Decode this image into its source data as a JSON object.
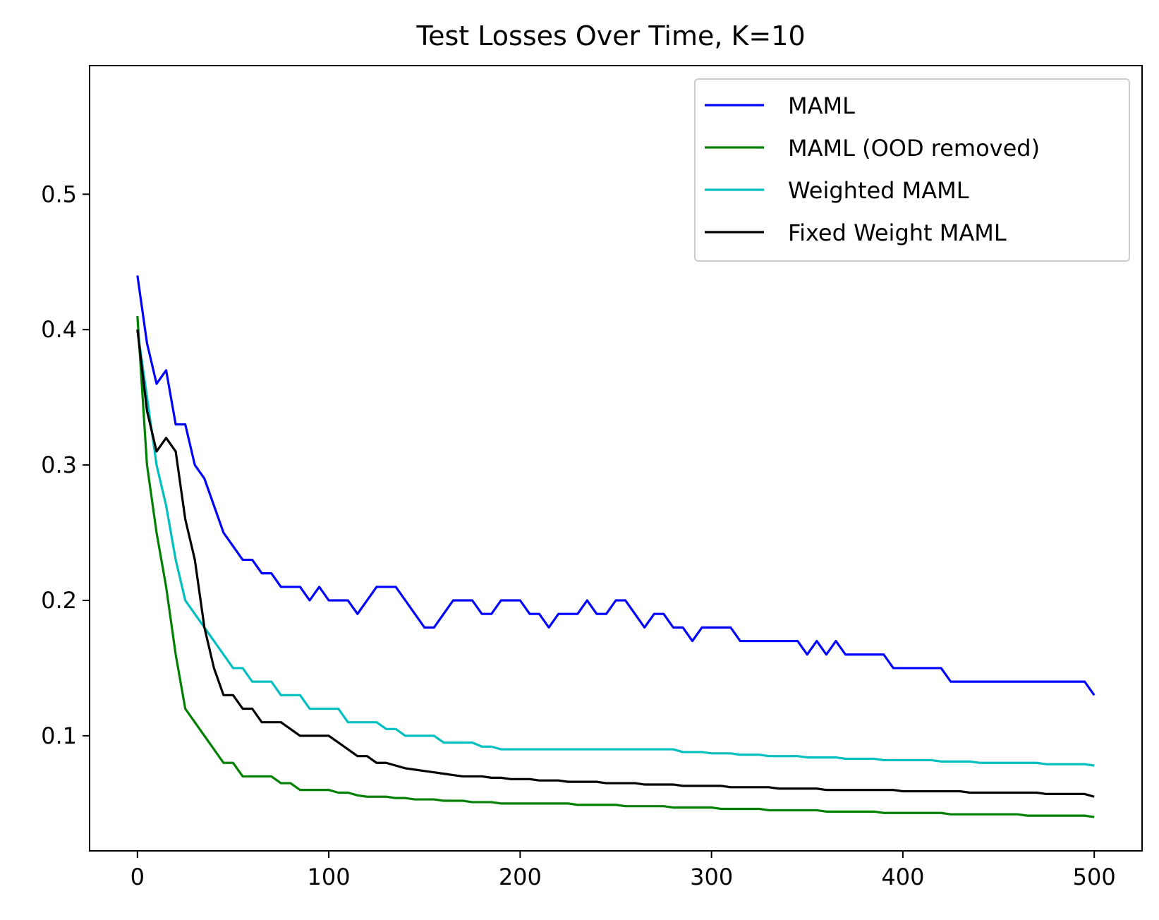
{
  "chart_data": {
    "type": "line",
    "title": "Test Losses Over Time, K=10",
    "xlabel": "",
    "ylabel": "",
    "xlim": [
      -25,
      525
    ],
    "ylim": [
      0.015,
      0.595
    ],
    "xticks": [
      0,
      100,
      200,
      300,
      400,
      500
    ],
    "xtick_labels": [
      "0",
      "100",
      "200",
      "300",
      "400",
      "500"
    ],
    "yticks": [
      0.1,
      0.2,
      0.3,
      0.4,
      0.5
    ],
    "ytick_labels": [
      "0.1",
      "0.2",
      "0.3",
      "0.4",
      "0.5"
    ],
    "grid": false,
    "legend_position": "top-right",
    "x_step": 5,
    "series": [
      {
        "name": "MAML",
        "color": "#0000ff",
        "values": [
          0.44,
          0.39,
          0.36,
          0.37,
          0.33,
          0.33,
          0.3,
          0.29,
          0.27,
          0.25,
          0.24,
          0.23,
          0.23,
          0.22,
          0.22,
          0.21,
          0.21,
          0.21,
          0.2,
          0.21,
          0.2,
          0.2,
          0.2,
          0.19,
          0.2,
          0.21,
          0.21,
          0.21,
          0.2,
          0.19,
          0.18,
          0.18,
          0.19,
          0.2,
          0.2,
          0.2,
          0.19,
          0.19,
          0.2,
          0.2,
          0.2,
          0.19,
          0.19,
          0.18,
          0.19,
          0.19,
          0.19,
          0.2,
          0.19,
          0.19,
          0.2,
          0.2,
          0.19,
          0.18,
          0.19,
          0.19,
          0.18,
          0.18,
          0.17,
          0.18,
          0.18,
          0.18,
          0.18,
          0.17,
          0.17,
          0.17,
          0.17,
          0.17,
          0.17,
          0.17,
          0.16,
          0.17,
          0.16,
          0.17,
          0.16,
          0.16,
          0.16,
          0.16,
          0.16,
          0.15,
          0.15,
          0.15,
          0.15,
          0.15,
          0.15,
          0.14,
          0.14,
          0.14,
          0.14,
          0.14,
          0.14,
          0.14,
          0.14,
          0.14,
          0.14,
          0.14,
          0.14,
          0.14,
          0.14,
          0.14,
          0.13
        ]
      },
      {
        "name": "MAML (OOD removed)",
        "color": "#008000",
        "values": [
          0.41,
          0.3,
          0.25,
          0.21,
          0.16,
          0.12,
          0.11,
          0.1,
          0.09,
          0.08,
          0.08,
          0.07,
          0.07,
          0.07,
          0.07,
          0.065,
          0.065,
          0.06,
          0.06,
          0.06,
          0.06,
          0.058,
          0.058,
          0.056,
          0.055,
          0.055,
          0.055,
          0.054,
          0.054,
          0.053,
          0.053,
          0.053,
          0.052,
          0.052,
          0.052,
          0.051,
          0.051,
          0.051,
          0.05,
          0.05,
          0.05,
          0.05,
          0.05,
          0.05,
          0.05,
          0.05,
          0.049,
          0.049,
          0.049,
          0.049,
          0.049,
          0.048,
          0.048,
          0.048,
          0.048,
          0.048,
          0.047,
          0.047,
          0.047,
          0.047,
          0.047,
          0.046,
          0.046,
          0.046,
          0.046,
          0.046,
          0.045,
          0.045,
          0.045,
          0.045,
          0.045,
          0.045,
          0.044,
          0.044,
          0.044,
          0.044,
          0.044,
          0.044,
          0.043,
          0.043,
          0.043,
          0.043,
          0.043,
          0.043,
          0.043,
          0.042,
          0.042,
          0.042,
          0.042,
          0.042,
          0.042,
          0.042,
          0.042,
          0.041,
          0.041,
          0.041,
          0.041,
          0.041,
          0.041,
          0.041,
          0.04
        ]
      },
      {
        "name": "Weighted MAML",
        "color": "#00bfbf",
        "values": [
          0.4,
          0.35,
          0.3,
          0.27,
          0.23,
          0.2,
          0.19,
          0.18,
          0.17,
          0.16,
          0.15,
          0.15,
          0.14,
          0.14,
          0.14,
          0.13,
          0.13,
          0.13,
          0.12,
          0.12,
          0.12,
          0.12,
          0.11,
          0.11,
          0.11,
          0.11,
          0.105,
          0.105,
          0.1,
          0.1,
          0.1,
          0.1,
          0.095,
          0.095,
          0.095,
          0.095,
          0.092,
          0.092,
          0.09,
          0.09,
          0.09,
          0.09,
          0.09,
          0.09,
          0.09,
          0.09,
          0.09,
          0.09,
          0.09,
          0.09,
          0.09,
          0.09,
          0.09,
          0.09,
          0.09,
          0.09,
          0.09,
          0.088,
          0.088,
          0.088,
          0.087,
          0.087,
          0.087,
          0.086,
          0.086,
          0.086,
          0.085,
          0.085,
          0.085,
          0.085,
          0.084,
          0.084,
          0.084,
          0.084,
          0.083,
          0.083,
          0.083,
          0.083,
          0.082,
          0.082,
          0.082,
          0.082,
          0.082,
          0.082,
          0.081,
          0.081,
          0.081,
          0.081,
          0.08,
          0.08,
          0.08,
          0.08,
          0.08,
          0.08,
          0.08,
          0.079,
          0.079,
          0.079,
          0.079,
          0.079,
          0.078
        ]
      },
      {
        "name": "Fixed Weight MAML",
        "color": "#000000",
        "values": [
          0.4,
          0.34,
          0.31,
          0.32,
          0.31,
          0.26,
          0.23,
          0.18,
          0.15,
          0.13,
          0.13,
          0.12,
          0.12,
          0.11,
          0.11,
          0.11,
          0.105,
          0.1,
          0.1,
          0.1,
          0.1,
          0.095,
          0.09,
          0.085,
          0.085,
          0.08,
          0.08,
          0.078,
          0.076,
          0.075,
          0.074,
          0.073,
          0.072,
          0.071,
          0.07,
          0.07,
          0.07,
          0.069,
          0.069,
          0.068,
          0.068,
          0.068,
          0.067,
          0.067,
          0.067,
          0.066,
          0.066,
          0.066,
          0.066,
          0.065,
          0.065,
          0.065,
          0.065,
          0.064,
          0.064,
          0.064,
          0.064,
          0.063,
          0.063,
          0.063,
          0.063,
          0.063,
          0.062,
          0.062,
          0.062,
          0.062,
          0.062,
          0.061,
          0.061,
          0.061,
          0.061,
          0.061,
          0.06,
          0.06,
          0.06,
          0.06,
          0.06,
          0.06,
          0.06,
          0.06,
          0.059,
          0.059,
          0.059,
          0.059,
          0.059,
          0.059,
          0.059,
          0.058,
          0.058,
          0.058,
          0.058,
          0.058,
          0.058,
          0.058,
          0.058,
          0.057,
          0.057,
          0.057,
          0.057,
          0.057,
          0.055
        ]
      }
    ]
  }
}
